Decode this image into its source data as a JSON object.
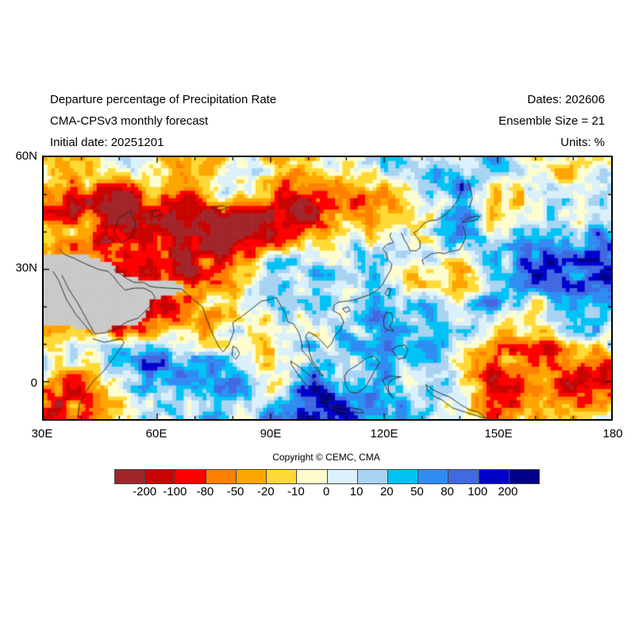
{
  "header": {
    "title_line1": "Departure percentage of Precipitation Rate",
    "title_line2": "CMA-CPSv3 monthly forecast",
    "title_line3": "Initial date: 20251201",
    "dates": "Dates: 202606",
    "ensemble": "Ensemble Size = 21",
    "units": "Units: %"
  },
  "chart_data": {
    "type": "heatmap",
    "title": "Departure percentage of Precipitation Rate",
    "subtitle": "CMA-CPSv3 monthly forecast",
    "initial_date": "20251201",
    "forecast_month": "202606",
    "ensemble_size": 21,
    "units": "%",
    "copyright": "Copyright © CEMC, CMA",
    "x_axis": {
      "label_ticks": [
        "30E",
        "60E",
        "90E",
        "120E",
        "150E",
        "180"
      ],
      "range_deg": [
        30,
        180
      ],
      "major_tick_deg": 30,
      "minor_tick_deg": 10
    },
    "y_axis": {
      "label_ticks": [
        "60N",
        "30N",
        "0"
      ],
      "range_deg": [
        -10,
        60
      ],
      "major_tick_deg": 30,
      "minor_tick_deg": 10
    },
    "colorbar": {
      "levels": [
        -200,
        -100,
        -80,
        -50,
        -20,
        -10,
        0,
        10,
        20,
        50,
        80,
        100,
        200
      ],
      "colors": [
        "#a2252a",
        "#c90400",
        "#ff0000",
        "#ff8000",
        "#ffa500",
        "#ffd936",
        "#fdfdd0",
        "#daf0fb",
        "#a9d3f2",
        "#00c3f5",
        "#2f8df2",
        "#4169e1",
        "#0000cd",
        "#00008b"
      ],
      "missing_color": "#c9c9c9",
      "orientation": "horizontal"
    },
    "regions_summary": [
      "Strong negative departure (dark red) over west/central Asia 30-80E, 30-55N",
      "Negative (red) band along 35-40N from 75E to 105E and over Arabian Sea 45-70E, 5-25N",
      "Missing-data gray mask over Arabian peninsula / NE Africa near left edge 18-33N",
      "Positive departure (blue) around Korea/Japan 115-145E, 25-45N and navy blob near 140E, 55N",
      "Strong positive (dark blue) 160-180E, 20-35N",
      "Broad orange (negative) band bottom-right 130-180E, 10S-5N",
      "Navy (positive) band near equator 110-145E at bottom edge",
      "Red patch bottom-left corner 30-45E south of equator"
    ],
    "pattern_hints": {
      "seed": 7,
      "grid": {
        "cols": 150,
        "rows": 70
      },
      "noise_amps": [
        1.7,
        1.25,
        0.85
      ],
      "noise_scales": [
        [
          15,
          7
        ],
        [
          38,
          18
        ],
        [
          75,
          35
        ]
      ],
      "bias_blobs": [
        {
          "u": 0.1,
          "v": 0.2,
          "s": -3.2,
          "r": 0.15
        },
        {
          "u": 0.22,
          "v": 0.28,
          "s": -2.4,
          "r": 0.11
        },
        {
          "u": 0.42,
          "v": 0.27,
          "s": -2.4,
          "r": 0.12
        },
        {
          "u": 0.55,
          "v": 0.2,
          "s": -1.6,
          "r": 0.09
        },
        {
          "u": 0.07,
          "v": 0.5,
          "s": -2.4,
          "r": 0.1
        },
        {
          "u": 0.15,
          "v": 0.62,
          "s": -2.6,
          "r": 0.11
        },
        {
          "u": 0.33,
          "v": 0.6,
          "s": -1.4,
          "r": 0.1
        },
        {
          "u": 0.03,
          "v": 0.93,
          "s": -2.4,
          "r": 0.08
        },
        {
          "u": 0.86,
          "v": 0.88,
          "s": -2.6,
          "r": 0.15
        },
        {
          "u": 0.97,
          "v": 0.8,
          "s": -1.8,
          "r": 0.1
        },
        {
          "u": 0.67,
          "v": 0.5,
          "s": -1.4,
          "r": 0.08
        },
        {
          "u": 0.8,
          "v": 0.1,
          "s": -1.8,
          "r": 0.08
        },
        {
          "u": 0.62,
          "v": 0.3,
          "s": 2.2,
          "r": 0.12
        },
        {
          "u": 0.74,
          "v": 0.07,
          "s": 3.0,
          "r": 0.07
        },
        {
          "u": 0.93,
          "v": 0.44,
          "s": 2.8,
          "r": 0.11
        },
        {
          "u": 0.47,
          "v": 0.42,
          "s": 1.8,
          "r": 0.09
        },
        {
          "u": 0.19,
          "v": 0.78,
          "s": 2.2,
          "r": 0.08
        },
        {
          "u": 0.7,
          "v": 0.72,
          "s": 2.4,
          "r": 0.11
        },
        {
          "u": 0.52,
          "v": 0.96,
          "s": 2.6,
          "r": 0.09
        },
        {
          "u": 0.33,
          "v": 0.14,
          "s": 1.4,
          "r": 0.06
        },
        {
          "u": 0.03,
          "v": 0.04,
          "s": 1.6,
          "r": 0.07
        },
        {
          "u": 0.99,
          "v": 0.6,
          "s": 1.4,
          "r": 0.07
        }
      ],
      "mask_blobs": [
        {
          "u": 0.03,
          "v": 0.47,
          "w": 1.2,
          "r": 0.07
        },
        {
          "u": 0.08,
          "v": 0.55,
          "w": 1.0,
          "r": 0.06
        },
        {
          "u": 0.13,
          "v": 0.6,
          "w": 0.8,
          "r": 0.045
        },
        {
          "u": 0.01,
          "v": 0.57,
          "w": 1.0,
          "r": 0.05
        },
        {
          "u": 0.21,
          "v": 0.5,
          "w": 0.7,
          "r": 0.03
        }
      ],
      "mask_threshold": 0.55
    },
    "coastlines": [
      [
        [
          50,
          44
        ],
        [
          53,
          45.5
        ],
        [
          54.5,
          42
        ],
        [
          53.5,
          39
        ],
        [
          50.5,
          37
        ],
        [
          48.5,
          40
        ],
        [
          50,
          44
        ]
      ],
      [
        [
          58.5,
          45.5
        ],
        [
          60.5,
          46
        ],
        [
          61,
          44.5
        ],
        [
          59,
          44
        ],
        [
          58.5,
          45.5
        ]
      ],
      [
        [
          74,
          46.5
        ],
        [
          77,
          47
        ],
        [
          79,
          46.5
        ],
        [
          76.5,
          45.8
        ],
        [
          74,
          46.5
        ]
      ],
      [
        [
          32.5,
          29.5
        ],
        [
          34,
          27
        ],
        [
          36,
          22
        ],
        [
          38.5,
          18
        ],
        [
          41,
          15
        ],
        [
          43,
          12.5
        ]
      ],
      [
        [
          34.8,
          28.5
        ],
        [
          36.5,
          25
        ],
        [
          39,
          21
        ],
        [
          42,
          15.5
        ],
        [
          43.5,
          12.8
        ]
      ],
      [
        [
          43.5,
          12.8
        ],
        [
          46,
          13
        ],
        [
          49,
          14
        ],
        [
          52,
          16
        ],
        [
          55,
          17
        ],
        [
          58,
          20
        ],
        [
          59.5,
          22.5
        ],
        [
          58.5,
          24
        ],
        [
          56.5,
          25
        ],
        [
          54,
          25
        ],
        [
          51.5,
          24.5
        ],
        [
          50,
          26
        ],
        [
          48.5,
          28
        ],
        [
          47,
          29.5
        ],
        [
          44.5,
          30
        ],
        [
          41,
          31.5
        ],
        [
          38,
          33
        ],
        [
          35.5,
          34
        ],
        [
          34,
          35.5
        ]
      ],
      [
        [
          48.5,
          30
        ],
        [
          50,
          29
        ],
        [
          52,
          27.5
        ],
        [
          54,
          26.5
        ],
        [
          56.5,
          26.5
        ],
        [
          58,
          25.5
        ],
        [
          60,
          25.2
        ],
        [
          63,
          25
        ],
        [
          66.5,
          24.8
        ],
        [
          67.5,
          23.8
        ]
      ],
      [
        [
          43,
          11.5
        ],
        [
          46,
          10.5
        ],
        [
          50.5,
          11.5
        ],
        [
          51.3,
          10.5
        ],
        [
          49,
          7
        ],
        [
          46,
          3
        ],
        [
          43,
          0
        ],
        [
          41,
          -3
        ],
        [
          39.5,
          -6
        ],
        [
          39,
          -9.5
        ]
      ],
      [
        [
          67.5,
          23.8
        ],
        [
          69.5,
          22
        ],
        [
          72,
          20
        ],
        [
          73,
          17
        ],
        [
          74.5,
          13
        ],
        [
          76.5,
          9
        ],
        [
          77.5,
          8
        ],
        [
          79,
          10
        ],
        [
          80.3,
          13.5
        ],
        [
          80,
          15.8
        ],
        [
          82.5,
          17.5
        ],
        [
          85,
          19.5
        ],
        [
          87.5,
          21.5
        ],
        [
          89,
          21.8
        ],
        [
          90.5,
          22.2
        ],
        [
          91.5,
          22.5
        ],
        [
          92.3,
          21
        ]
      ],
      [
        [
          80,
          9.5
        ],
        [
          81,
          9
        ],
        [
          81.8,
          7.5
        ],
        [
          80.8,
          6
        ],
        [
          79.8,
          7
        ],
        [
          80,
          9.5
        ]
      ],
      [
        [
          92.3,
          21
        ],
        [
          94,
          18
        ],
        [
          94.5,
          16
        ],
        [
          96,
          15.5
        ],
        [
          97.5,
          13
        ],
        [
          98.3,
          10
        ],
        [
          98.2,
          8.5
        ],
        [
          100,
          6.5
        ],
        [
          101.5,
          4
        ],
        [
          103.2,
          1.8
        ],
        [
          103.8,
          1.5
        ],
        [
          102.5,
          3.5
        ],
        [
          101,
          5.5
        ],
        [
          100.2,
          8
        ],
        [
          100,
          10.5
        ],
        [
          99.2,
          12
        ],
        [
          100,
          13.3
        ],
        [
          102,
          12.2
        ],
        [
          103.5,
          10.8
        ],
        [
          105,
          9
        ],
        [
          106.3,
          10.5
        ],
        [
          106.8,
          12
        ],
        [
          108.5,
          14
        ],
        [
          109.3,
          16
        ],
        [
          108.3,
          18
        ],
        [
          106.5,
          19
        ],
        [
          106.8,
          20.5
        ],
        [
          108,
          21.3
        ]
      ],
      [
        [
          108,
          21.3
        ],
        [
          110,
          21.5
        ],
        [
          112,
          21.8
        ],
        [
          114,
          22.5
        ],
        [
          116,
          23.2
        ],
        [
          118,
          24.3
        ],
        [
          119.5,
          25.8
        ],
        [
          120.5,
          27.8
        ],
        [
          121.8,
          30
        ],
        [
          122,
          31.5
        ],
        [
          121,
          32.5
        ],
        [
          120.5,
          34.5
        ],
        [
          119.5,
          35.5
        ],
        [
          121,
          36.8
        ],
        [
          122.5,
          37.2
        ],
        [
          121.5,
          38.8
        ],
        [
          121.8,
          39.8
        ]
      ],
      [
        [
          124.5,
          39.8
        ],
        [
          125.3,
          38
        ],
        [
          126.2,
          36.5
        ],
        [
          126.8,
          35
        ],
        [
          128.5,
          35
        ],
        [
          129.5,
          35.8
        ],
        [
          129.5,
          37.5
        ],
        [
          128.5,
          38.8
        ],
        [
          127.8,
          39.8
        ],
        [
          129,
          40.5
        ],
        [
          130.5,
          42.3
        ],
        [
          132,
          43
        ],
        [
          134,
          43.2
        ],
        [
          136,
          44.5
        ],
        [
          138,
          46.5
        ],
        [
          139.5,
          48.5
        ],
        [
          140.3,
          51
        ],
        [
          141,
          53.5
        ]
      ],
      [
        [
          142.5,
          46.5
        ],
        [
          143.3,
          49
        ],
        [
          142.8,
          51.5
        ],
        [
          142,
          53.8
        ]
      ],
      [
        [
          130.5,
          31.3
        ],
        [
          130,
          32.5
        ],
        [
          131.5,
          33.5
        ],
        [
          132.5,
          34.2
        ],
        [
          134.5,
          34.5
        ],
        [
          136,
          34.2
        ],
        [
          137,
          34.7
        ],
        [
          138.8,
          35
        ],
        [
          140,
          35.3
        ],
        [
          140.8,
          36.8
        ],
        [
          141.5,
          38.5
        ],
        [
          141.3,
          40.5
        ],
        [
          140.8,
          41.5
        ]
      ],
      [
        [
          140.5,
          42.5
        ],
        [
          141.5,
          42.7
        ],
        [
          143,
          42.9
        ],
        [
          144.5,
          43.3
        ],
        [
          145.5,
          44.3
        ],
        [
          144,
          44.2
        ],
        [
          142.5,
          43.8
        ],
        [
          141.5,
          43.2
        ],
        [
          140.5,
          42.5
        ]
      ],
      [
        [
          120.2,
          23.5
        ],
        [
          121,
          25
        ],
        [
          121.8,
          24.8
        ],
        [
          121.2,
          22.8
        ],
        [
          120.2,
          23.5
        ]
      ],
      [
        [
          109,
          19.5
        ],
        [
          110.5,
          20
        ],
        [
          111,
          19
        ],
        [
          109.8,
          18.5
        ],
        [
          109,
          19.5
        ]
      ],
      [
        [
          120,
          14.5
        ],
        [
          119.8,
          16.5
        ],
        [
          120.5,
          18.5
        ],
        [
          122,
          18.3
        ],
        [
          122.3,
          16.5
        ],
        [
          121.5,
          14.8
        ],
        [
          122.5,
          13.5
        ],
        [
          121,
          13.8
        ],
        [
          120,
          14.5
        ]
      ],
      [
        [
          122,
          8.5
        ],
        [
          123.5,
          9.5
        ],
        [
          125.5,
          9.8
        ],
        [
          126.3,
          8.5
        ],
        [
          125.5,
          6.5
        ],
        [
          123.8,
          6
        ],
        [
          122,
          8.5
        ]
      ],
      [
        [
          109.5,
          1.5
        ],
        [
          110.5,
          3
        ],
        [
          113,
          4.5
        ],
        [
          115.5,
          6.5
        ],
        [
          117.5,
          6.8
        ],
        [
          118.8,
          5
        ],
        [
          117.5,
          3
        ],
        [
          116.5,
          1
        ],
        [
          115,
          -1.5
        ],
        [
          113,
          -3
        ],
        [
          111,
          -2.8
        ],
        [
          109.8,
          -1
        ],
        [
          109.5,
          1.5
        ]
      ],
      [
        [
          95.3,
          5.5
        ],
        [
          97.5,
          4
        ],
        [
          100,
          2
        ],
        [
          102.5,
          -0.5
        ],
        [
          104.5,
          -2.5
        ],
        [
          106,
          -5
        ],
        [
          104.5,
          -5.5
        ],
        [
          102,
          -3.5
        ],
        [
          99.5,
          -1
        ],
        [
          97.2,
          2
        ],
        [
          95.5,
          4.5
        ],
        [
          95.3,
          5.5
        ]
      ],
      [
        [
          105.5,
          -6.2
        ],
        [
          108,
          -6.8
        ],
        [
          111,
          -6.9
        ],
        [
          114,
          -7.5
        ],
        [
          114.5,
          -8.4
        ],
        [
          111,
          -8.2
        ],
        [
          108,
          -7.8
        ],
        [
          105.8,
          -7
        ],
        [
          105.5,
          -6.2
        ]
      ],
      [
        [
          119.5,
          0.5
        ],
        [
          120.5,
          -1.5
        ],
        [
          121.5,
          -3.5
        ],
        [
          122.5,
          -4.5
        ],
        [
          121.2,
          -2.5
        ],
        [
          121,
          -0.5
        ],
        [
          122.5,
          0.8
        ],
        [
          124.5,
          1.3
        ],
        [
          121.5,
          1.5
        ],
        [
          119.5,
          0.5
        ]
      ],
      [
        [
          131,
          -0.8
        ],
        [
          133,
          -2.2
        ],
        [
          135,
          -3.2
        ],
        [
          137.5,
          -4.2
        ],
        [
          140,
          -6
        ],
        [
          142.5,
          -7.5
        ],
        [
          145,
          -8.2
        ],
        [
          147,
          -9.8
        ],
        [
          144,
          -9
        ],
        [
          141,
          -8
        ],
        [
          138,
          -7
        ],
        [
          135.5,
          -5
        ],
        [
          133,
          -3.8
        ],
        [
          131.5,
          -2.2
        ],
        [
          131,
          -0.8
        ]
      ]
    ]
  }
}
